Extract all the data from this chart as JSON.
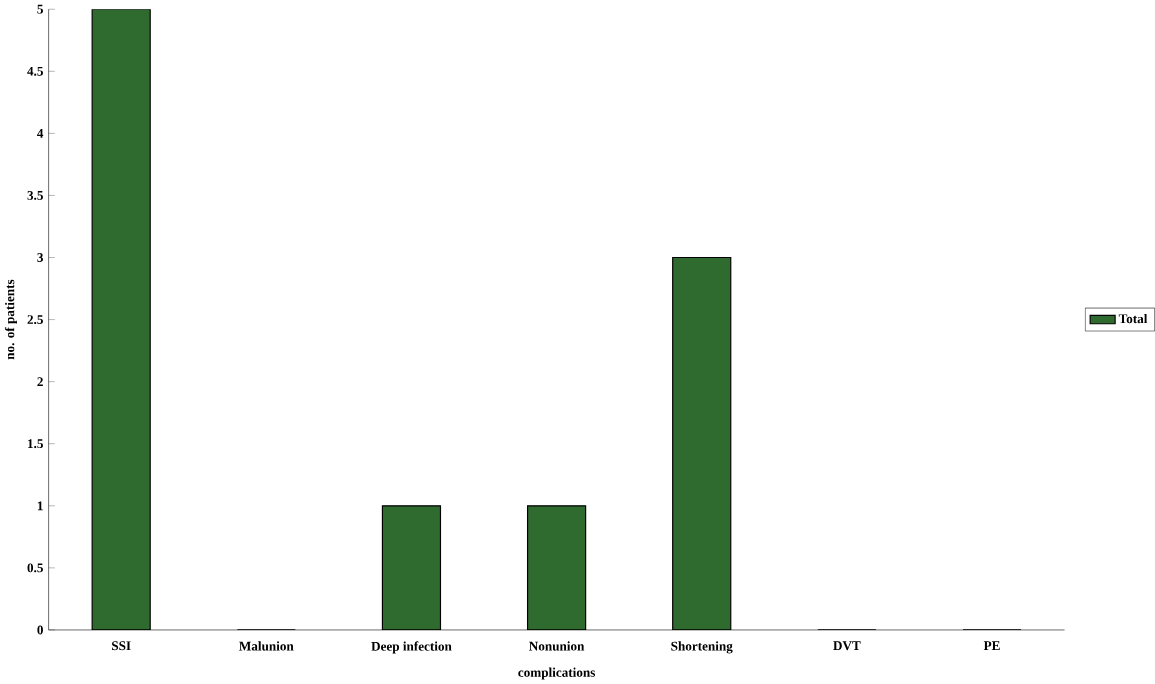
{
  "chart_data": {
    "type": "bar",
    "xlabel": "complications",
    "ylabel": "no. of patients",
    "categories": [
      "SSI",
      "Malunion",
      "Deep infection",
      "Nonunion",
      "Shortening",
      "DVT",
      "PE"
    ],
    "series": [
      {
        "name": "Total",
        "color": "#2f6b2f",
        "values": [
          5,
          0,
          1,
          1,
          3,
          0,
          0
        ]
      }
    ],
    "ylim": [
      0,
      5
    ],
    "yticks": [
      0,
      0.5,
      1,
      1.5,
      2,
      2.5,
      3,
      3.5,
      4,
      4.5,
      5
    ],
    "grid": false,
    "legend": "right"
  }
}
